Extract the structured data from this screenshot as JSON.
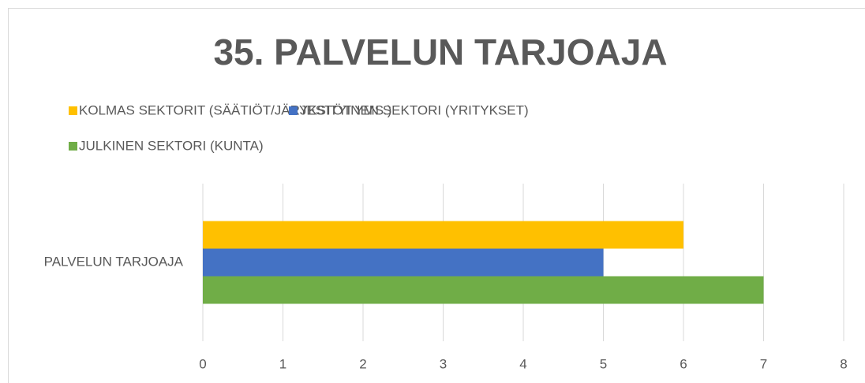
{
  "chart_data": {
    "type": "barh",
    "title": "35. PALVELUN TARJOAJA",
    "categories": [
      "PALVELUN TARJOAJA"
    ],
    "series": [
      {
        "name": "KOLMAS SEKTORIT (SÄÄTIÖT/JÄRJESTÖT YMS.)",
        "color": "#ffc000",
        "values": [
          6
        ]
      },
      {
        "name": "YKSITYINEN SEKTORI (YRITYKSET)",
        "color": "#4472c4",
        "values": [
          5
        ]
      },
      {
        "name": "JULKINEN SEKTORI (KUNTA)",
        "color": "#70ad47",
        "values": [
          7
        ]
      }
    ],
    "xlim": [
      0,
      8
    ],
    "xticks": [
      0,
      1,
      2,
      3,
      4,
      5,
      6,
      7,
      8
    ],
    "grid": true,
    "legend": "top"
  }
}
